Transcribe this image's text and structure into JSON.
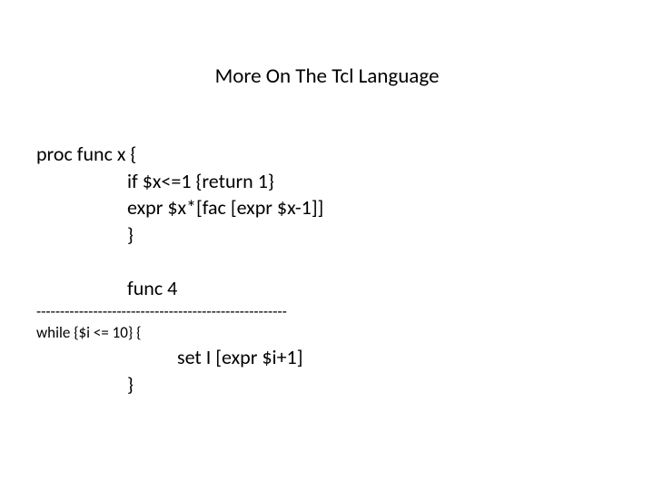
{
  "title": "More On The Tcl Language",
  "code": {
    "l1": "proc func x {",
    "l2": "if $x<=1 {return 1}",
    "l3": "expr $x*[fac [expr $x-1]]",
    "l4": "}",
    "l5": "func 4",
    "sep": "-----------------------------------------------------",
    "l6": "while {$i <= 10} {",
    "l7": "set I [expr $i+1]",
    "l8": "}"
  },
  "colors": {
    "background": "#ffffff",
    "text": "#000000"
  },
  "fontsizes": {
    "title": 23,
    "body": 22,
    "small": 17
  }
}
